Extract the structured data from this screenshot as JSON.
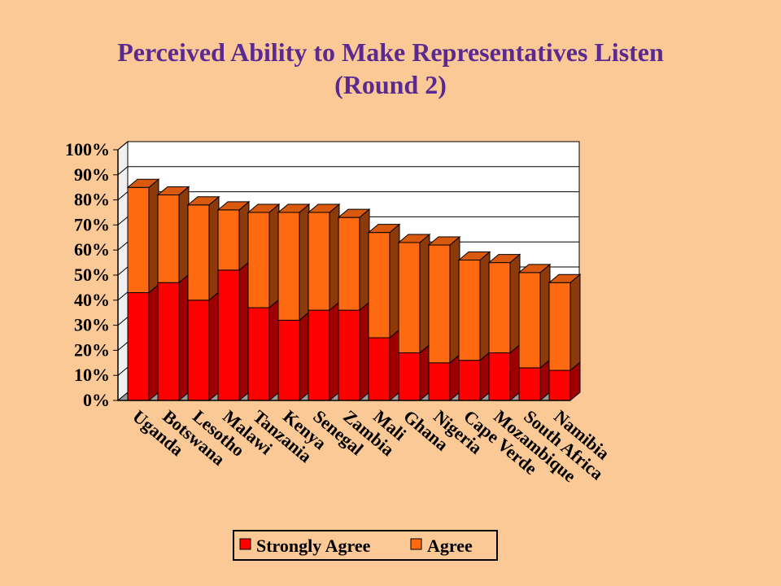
{
  "slide": {
    "title_line1": "Perceived Ability to Make Representatives Listen",
    "title_line2": "(Round 2)"
  },
  "chart_data": {
    "type": "bar",
    "stacked": true,
    "three_d": true,
    "categories": [
      "Uganda",
      "Botswana",
      "Lesotho",
      "Malawi",
      "Tanzania",
      "Kenya",
      "Senegal",
      "Zambia",
      "Mali",
      "Ghana",
      "Nigeria",
      "Cape Verde",
      "Mozambique",
      "South Africa",
      "Namibia"
    ],
    "series": [
      {
        "name": "Strongly Agree",
        "color": "#ff0000",
        "values": [
          43,
          47,
          40,
          52,
          37,
          32,
          36,
          36,
          25,
          19,
          15,
          16,
          19,
          13,
          12
        ]
      },
      {
        "name": "Agree",
        "color": "#ff6a10",
        "values": [
          42,
          35,
          38,
          24,
          38,
          43,
          39,
          37,
          42,
          44,
          47,
          40,
          36,
          38,
          35
        ]
      }
    ],
    "y_ticks": [
      "0%",
      "10%",
      "20%",
      "30%",
      "40%",
      "50%",
      "60%",
      "70%",
      "80%",
      "90%",
      "100%"
    ],
    "ylim": [
      0,
      100
    ],
    "grid": true,
    "legend_position": "bottom"
  }
}
